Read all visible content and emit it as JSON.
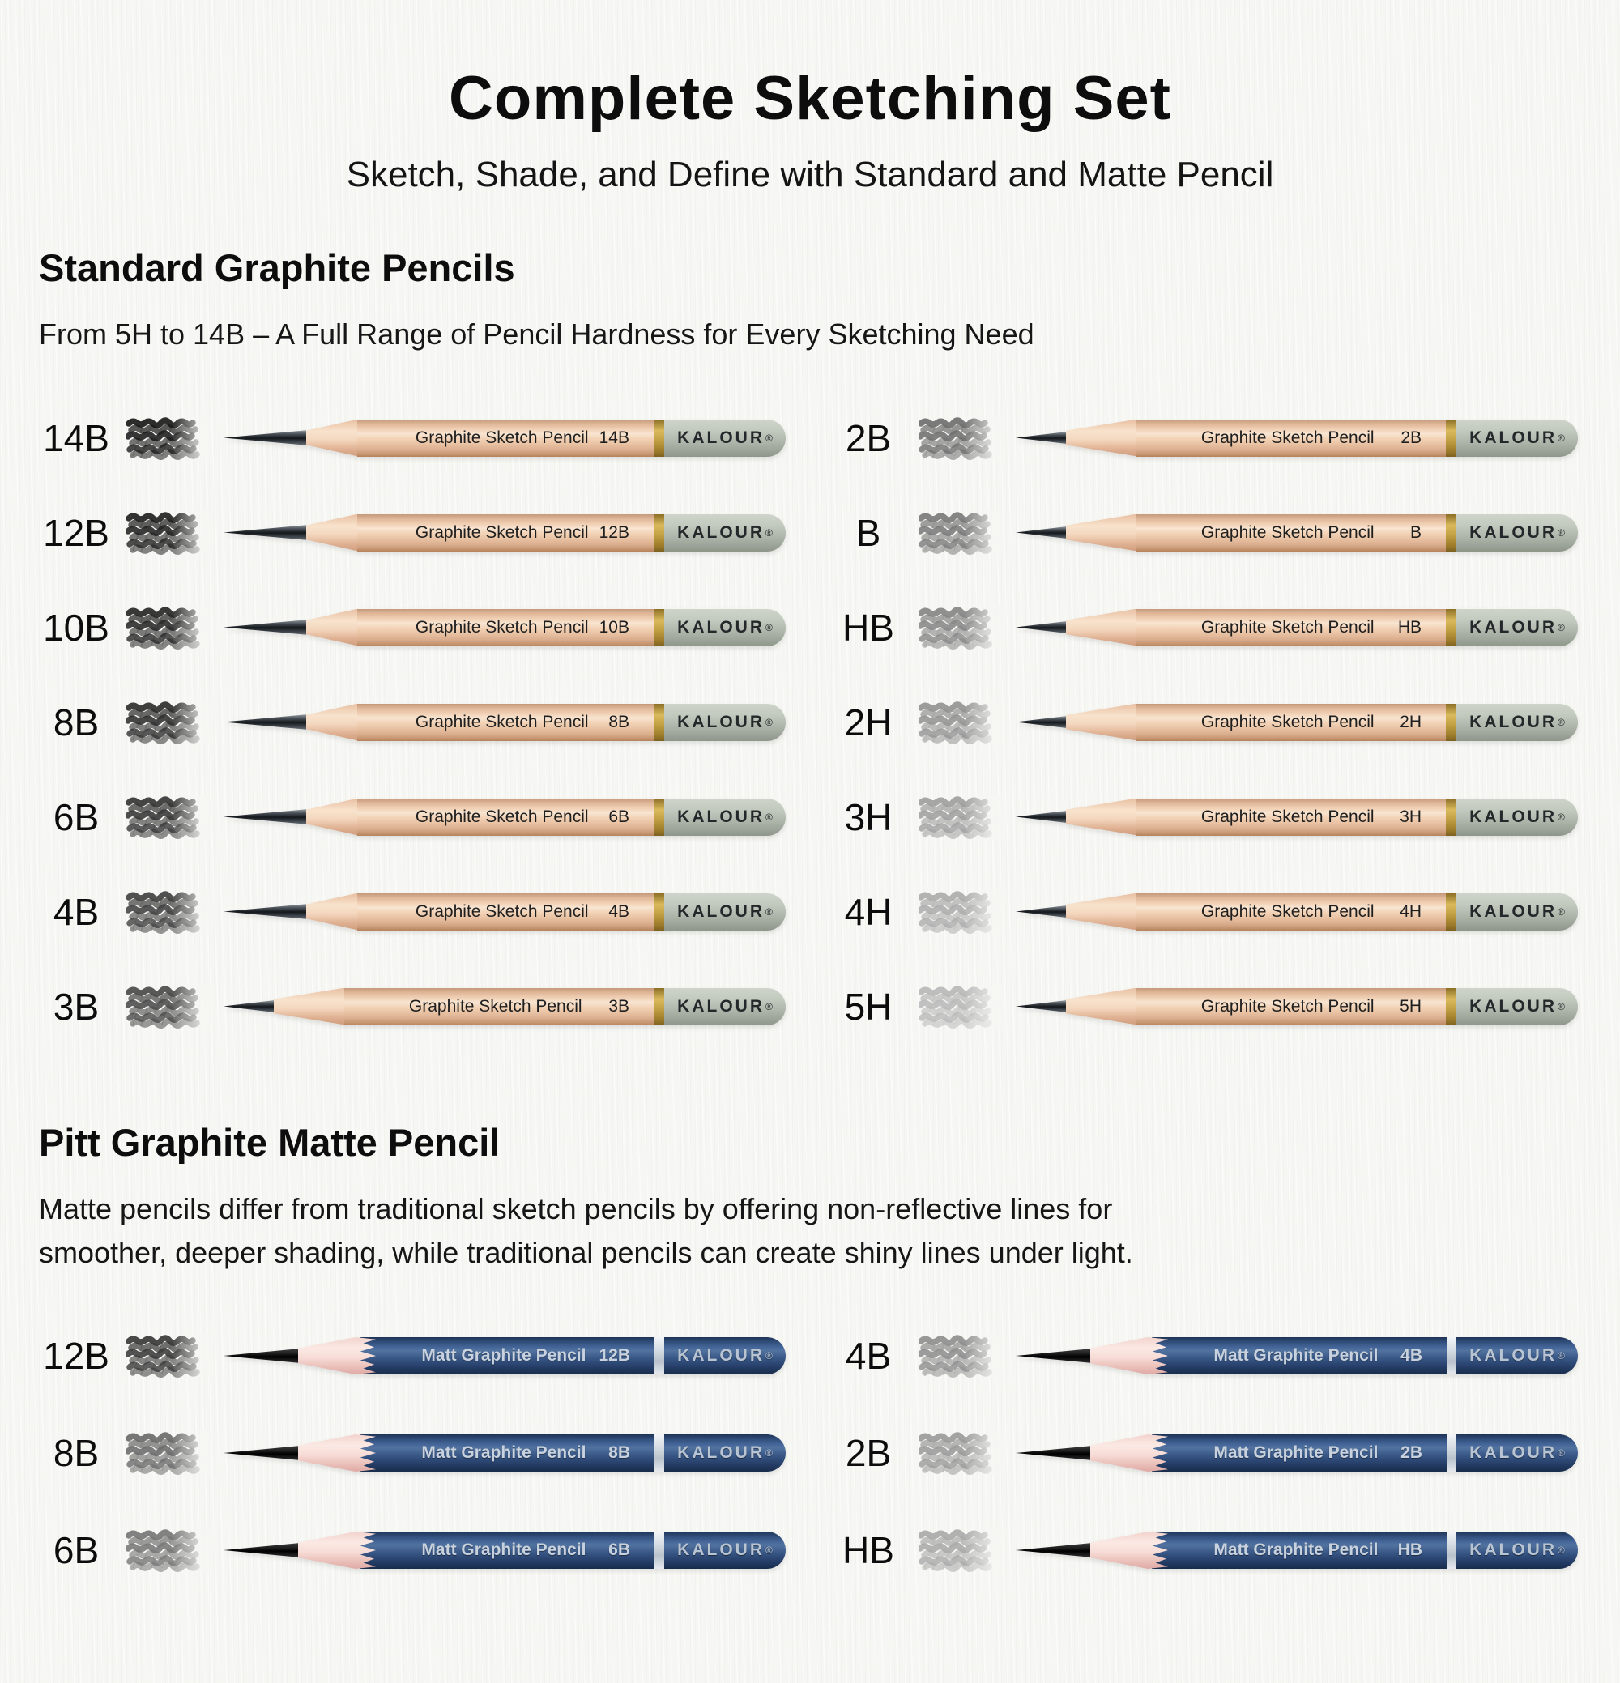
{
  "page": {
    "title": "Complete Sketching Set",
    "subtitle": "Sketch, Shade, and Define with Standard and Matte Pencil"
  },
  "colors": {
    "paper": "#f6f6f3",
    "ink": "#111111",
    "wood-barrel": "#f2d3b9",
    "wood-cone": "#f3d6bd",
    "gold-band": "#c3a144",
    "cap-sage": "#aeb6ab",
    "navy-barrel": "#2e4a77",
    "silver-band": "#d5dce3",
    "silver-print": "#c8d2de",
    "graphite-tip": "#14181c",
    "pink-wood": "#f7dcd6"
  },
  "sections": [
    {
      "id": "standard",
      "style": "standard",
      "heading": "Standard Graphite Pencils",
      "description": "From 5H to 14B – A Full Range of Pencil Hardness for Every Sketching Need",
      "pencil_label": "Graphite Sketch Pencil",
      "brand": "KALOUR",
      "brand_reg": "®",
      "columns": [
        [
          {
            "grade": "14B",
            "shade": "#1b1b1b",
            "tip": "long"
          },
          {
            "grade": "12B",
            "shade": "#222222",
            "tip": "long"
          },
          {
            "grade": "10B",
            "shade": "#282828",
            "tip": "long"
          },
          {
            "grade": "8B",
            "shade": "#2f2f2f",
            "tip": "long"
          },
          {
            "grade": "6B",
            "shade": "#363636",
            "tip": "long"
          },
          {
            "grade": "4B",
            "shade": "#424242",
            "tip": "long"
          },
          {
            "grade": "3B",
            "shade": "#4b4b4b",
            "tip": "short"
          }
        ],
        [
          {
            "grade": "2B",
            "shade": "#6f6f6f",
            "tip": "short"
          },
          {
            "grade": "B",
            "shade": "#7b7b7b",
            "tip": "short"
          },
          {
            "grade": "HB",
            "shade": "#878787",
            "tip": "short"
          },
          {
            "grade": "2H",
            "shade": "#949494",
            "tip": "short"
          },
          {
            "grade": "3H",
            "shade": "#a0a0a0",
            "tip": "short"
          },
          {
            "grade": "4H",
            "shade": "#adadad",
            "tip": "short"
          },
          {
            "grade": "5H",
            "shade": "#b9b9b9",
            "tip": "short"
          }
        ]
      ]
    },
    {
      "id": "matte",
      "style": "matte",
      "heading": "Pitt Graphite Matte Pencil",
      "description": "Matte pencils differ from traditional sketch pencils by offering non-reflective lines for smoother, deeper shading, while traditional pencils can create shiny lines under light.",
      "pencil_label": "Matt Graphite Pencil",
      "brand": "KALOUR",
      "brand_reg": "®",
      "columns": [
        [
          {
            "grade": "12B",
            "shade": "#3a3a3a",
            "tip": "long"
          },
          {
            "grade": "8B",
            "shade": "#6b6b6b",
            "tip": "long"
          },
          {
            "grade": "6B",
            "shade": "#777777",
            "tip": "long"
          }
        ],
        [
          {
            "grade": "4B",
            "shade": "#8f8f8f",
            "tip": "long"
          },
          {
            "grade": "2B",
            "shade": "#9b9b9b",
            "tip": "long"
          },
          {
            "grade": "HB",
            "shade": "#aaaaaa",
            "tip": "long"
          }
        ]
      ]
    }
  ]
}
